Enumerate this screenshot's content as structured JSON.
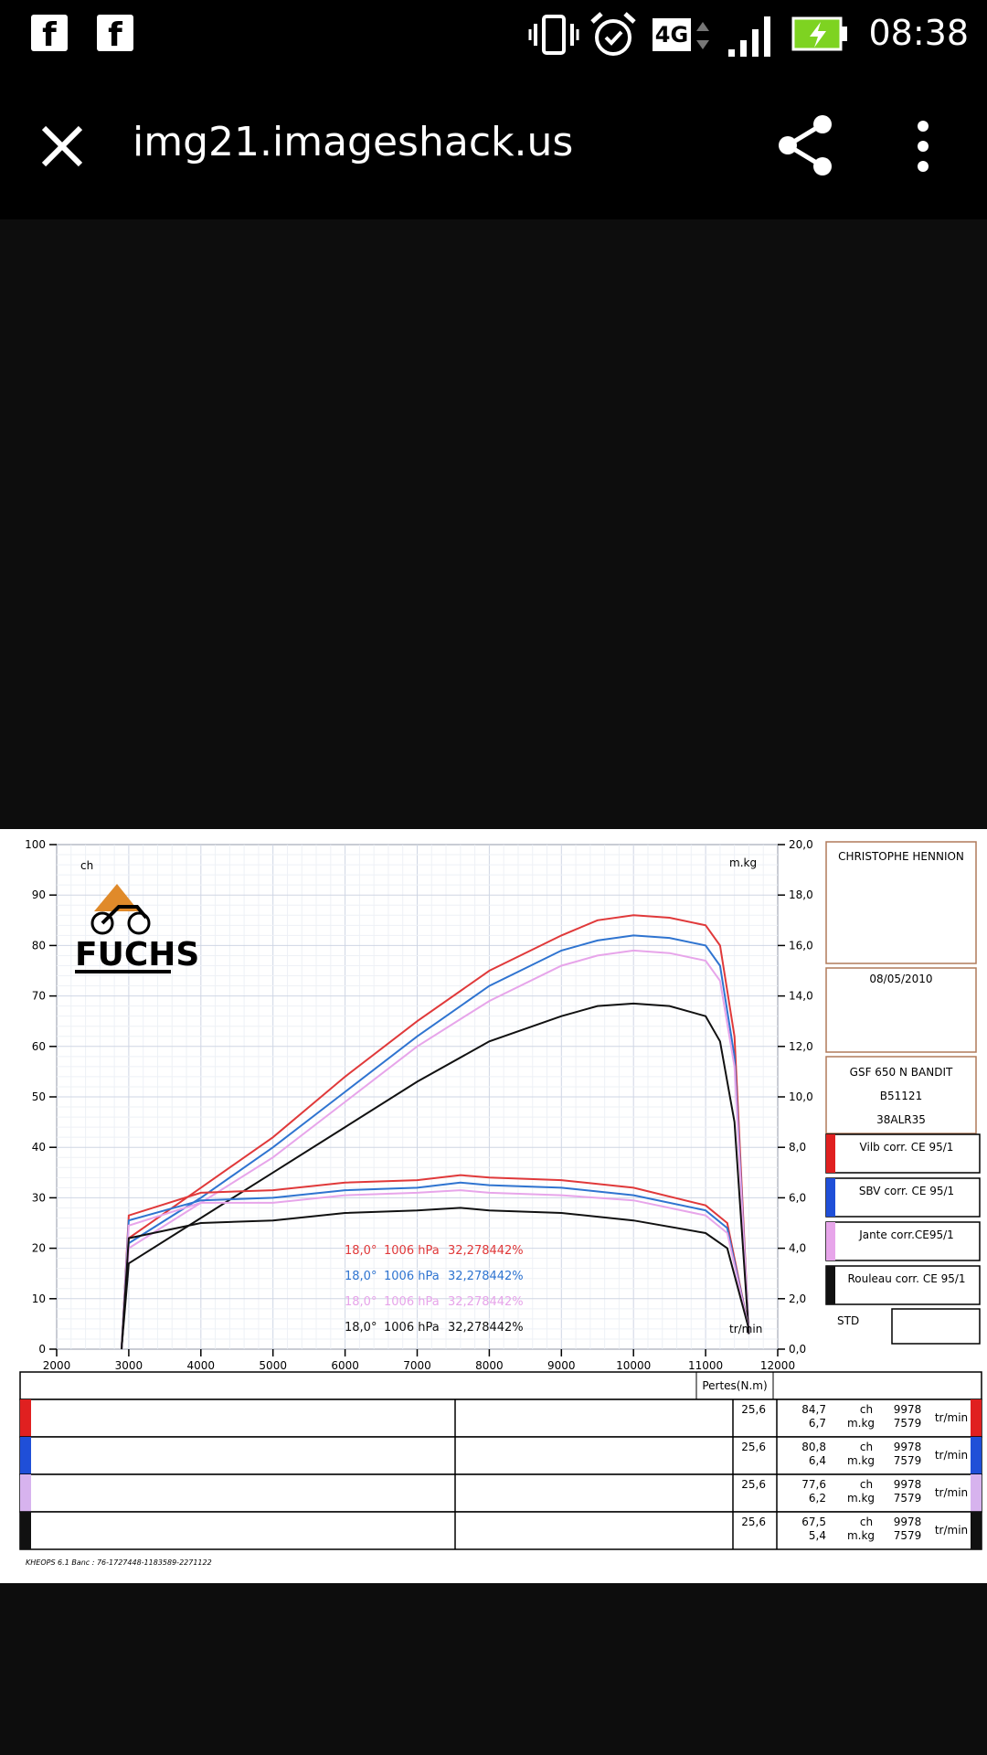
{
  "status_bar": {
    "left_icons": [
      "facebook-icon",
      "facebook-icon"
    ],
    "facebook_glyph": "f",
    "network_label": "4G",
    "time": "08:38",
    "right_icons": [
      "vibrate-icon",
      "alarm-icon",
      "network-4g-icon",
      "signal-icon",
      "battery-charging-icon"
    ]
  },
  "app_bar": {
    "url": "img21.imageshack.us",
    "actions": [
      "close-icon",
      "share-icon",
      "more-vert-icon"
    ]
  },
  "dyno_sheet": {
    "logo_text": "FUCHS",
    "left_axis_unit": "ch",
    "right_axis_unit": "m.kg",
    "x_axis_unit": "tr/min",
    "customer": "CHRISTOPHE HENNION",
    "date": "08/05/2010",
    "vehicle_lines": [
      "GSF 650 N BANDIT",
      "B51121",
      "38ALR35"
    ],
    "std_label": "STD",
    "conditions": [
      {
        "temp": "18,0°",
        "pressure": "1006 hPa",
        "humidity": "32,278442%",
        "color": "#e0393a"
      },
      {
        "temp": "18,0°",
        "pressure": "1006 hPa",
        "humidity": "32,278442%",
        "color": "#2f74d0"
      },
      {
        "temp": "18,0°",
        "pressure": "1006 hPa",
        "humidity": "32,278442%",
        "color": "#e7a5ea"
      },
      {
        "temp": "18,0°",
        "pressure": "1006 hPa",
        "humidity": "32,278442%",
        "color": "#111111"
      }
    ],
    "legend": [
      {
        "label": "Vilb corr. CE 95/1",
        "color": "#e02020"
      },
      {
        "label": "SBV corr. CE 95/1",
        "color": "#1f4fd8"
      },
      {
        "label": "Jante corr.CE95/1",
        "color": "#e7a5ea"
      },
      {
        "label": "Rouleau corr. CE 95/1",
        "color": "#111111"
      }
    ],
    "table": {
      "header": "Pertes(N.m)",
      "rows": [
        {
          "pertes": "25,6",
          "power": "84,7",
          "torque": "6,7",
          "power_unit": "ch",
          "torque_unit": "m.kg",
          "rpm_power": "9978",
          "rpm_torque": "7579",
          "rpm_unit": "tr/min",
          "color": "#e02020"
        },
        {
          "pertes": "25,6",
          "power": "80,8",
          "torque": "6,4",
          "power_unit": "ch",
          "torque_unit": "m.kg",
          "rpm_power": "9978",
          "rpm_torque": "7579",
          "rpm_unit": "tr/min",
          "color": "#1f4fd8"
        },
        {
          "pertes": "25,6",
          "power": "77,6",
          "torque": "6,2",
          "power_unit": "ch",
          "torque_unit": "m.kg",
          "rpm_power": "9978",
          "rpm_torque": "7579",
          "rpm_unit": "tr/min",
          "color": "#d7b3ee"
        },
        {
          "pertes": "25,6",
          "power": "67,5",
          "torque": "5,4",
          "power_unit": "ch",
          "torque_unit": "m.kg",
          "rpm_power": "9978",
          "rpm_torque": "7579",
          "rpm_unit": "tr/min",
          "color": "#111111"
        }
      ]
    },
    "footer": "KHEOPS 6.1  Banc : 76-1727448-1183589-2271122"
  },
  "chart_data": {
    "type": "line",
    "title": "",
    "xlabel": "tr/min",
    "ylabel_left": "ch",
    "ylabel_right": "m.kg",
    "xlim": [
      2000,
      12000
    ],
    "ylim_left": [
      0,
      100
    ],
    "ylim_right": [
      0,
      20
    ],
    "x_ticks": [
      "2000",
      "3000",
      "4000",
      "5000",
      "6000",
      "7000",
      "8000",
      "9000",
      "10000",
      "11000",
      "12000"
    ],
    "y_left_ticks": [
      "0",
      "10",
      "20",
      "30",
      "40",
      "50",
      "60",
      "70",
      "80",
      "90",
      "100"
    ],
    "y_right_ticks": [
      "0,0",
      "2,0",
      "4,0",
      "6,0",
      "8,0",
      "10,0",
      "12,0",
      "14,0",
      "16,0",
      "18,0",
      "20,0"
    ],
    "grid": true,
    "series": [
      {
        "name": "Vilb corr. CE 95/1",
        "kind": "power",
        "axis": "left",
        "color": "#e0393a",
        "x": [
          2900,
          3000,
          4000,
          5000,
          6000,
          7000,
          8000,
          9000,
          9500,
          10000,
          10500,
          11000,
          11200,
          11400,
          11600
        ],
        "y": [
          0,
          22,
          32,
          42,
          54,
          65,
          75,
          82,
          85,
          86,
          85.5,
          84,
          80,
          62,
          3
        ]
      },
      {
        "name": "SBV corr. CE 95/1",
        "kind": "power",
        "axis": "left",
        "color": "#2f74d0",
        "x": [
          2900,
          3000,
          4000,
          5000,
          6000,
          7000,
          8000,
          9000,
          9500,
          10000,
          10500,
          11000,
          11200,
          11400,
          11600
        ],
        "y": [
          0,
          21,
          30,
          40,
          51,
          62,
          72,
          79,
          81,
          82,
          81.5,
          80,
          76,
          58,
          3
        ]
      },
      {
        "name": "Jante corr.CE95/1",
        "kind": "power",
        "axis": "left",
        "color": "#e7a5ea",
        "x": [
          2900,
          3000,
          4000,
          5000,
          6000,
          7000,
          8000,
          9000,
          9500,
          10000,
          10500,
          11000,
          11200,
          11400,
          11600
        ],
        "y": [
          0,
          20,
          29,
          38,
          49,
          60,
          69,
          76,
          78,
          79,
          78.5,
          77,
          73,
          56,
          3
        ]
      },
      {
        "name": "Rouleau corr. CE 95/1",
        "kind": "power",
        "axis": "left",
        "color": "#111111",
        "x": [
          2900,
          3000,
          4000,
          5000,
          6000,
          7000,
          8000,
          9000,
          9500,
          10000,
          10500,
          11000,
          11200,
          11400,
          11600
        ],
        "y": [
          0,
          17,
          26,
          35,
          44,
          53,
          61,
          66,
          68,
          68.5,
          68,
          66,
          61,
          45,
          3
        ]
      },
      {
        "name": "Vilb corr. CE 95/1",
        "kind": "torque",
        "axis": "right",
        "color": "#e0393a",
        "x": [
          2900,
          3000,
          4000,
          5000,
          6000,
          7000,
          7600,
          8000,
          9000,
          10000,
          11000,
          11300,
          11600
        ],
        "y": [
          0,
          5.3,
          6.2,
          6.3,
          6.6,
          6.7,
          6.9,
          6.8,
          6.7,
          6.4,
          5.7,
          5.0,
          0.8
        ]
      },
      {
        "name": "SBV corr. CE 95/1",
        "kind": "torque",
        "axis": "right",
        "color": "#2f74d0",
        "x": [
          2900,
          3000,
          4000,
          5000,
          6000,
          7000,
          7600,
          8000,
          9000,
          10000,
          11000,
          11300,
          11600
        ],
        "y": [
          0,
          5.1,
          5.9,
          6.0,
          6.3,
          6.4,
          6.6,
          6.5,
          6.4,
          6.1,
          5.5,
          4.8,
          0.8
        ]
      },
      {
        "name": "Jante corr.CE95/1",
        "kind": "torque",
        "axis": "right",
        "color": "#e7a5ea",
        "x": [
          2900,
          3000,
          4000,
          5000,
          6000,
          7000,
          7600,
          8000,
          9000,
          10000,
          11000,
          11300,
          11600
        ],
        "y": [
          0,
          4.9,
          5.8,
          5.8,
          6.1,
          6.2,
          6.3,
          6.2,
          6.1,
          5.9,
          5.3,
          4.6,
          0.8
        ]
      },
      {
        "name": "Rouleau corr. CE 95/1",
        "kind": "torque",
        "axis": "right",
        "color": "#111111",
        "x": [
          2900,
          3000,
          4000,
          5000,
          6000,
          7000,
          7600,
          8000,
          9000,
          10000,
          11000,
          11300,
          11600
        ],
        "y": [
          0,
          4.4,
          5.0,
          5.1,
          5.4,
          5.5,
          5.6,
          5.5,
          5.4,
          5.1,
          4.6,
          4.0,
          0.8
        ]
      }
    ]
  }
}
